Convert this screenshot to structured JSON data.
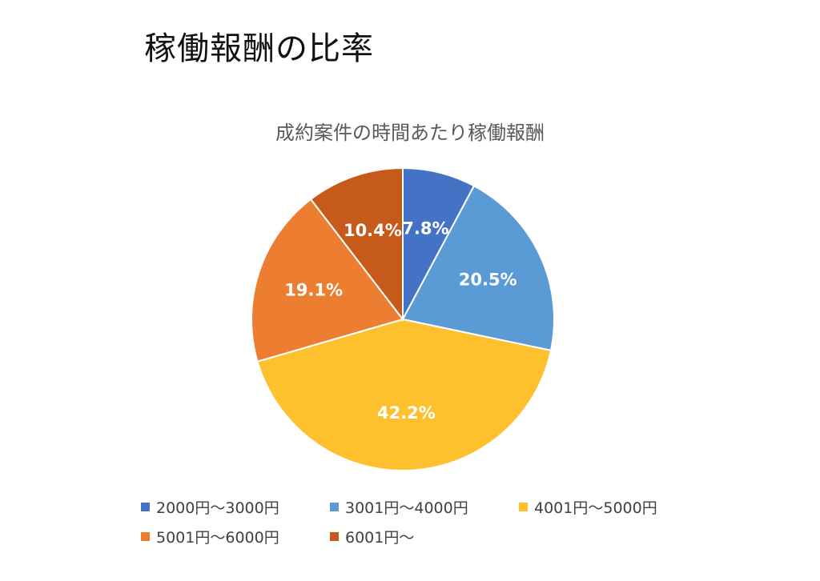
{
  "page": {
    "heading": "稼働報酬の比率"
  },
  "chart_data": {
    "type": "pie",
    "title": "成約案件の時間あたり稼働報酬",
    "categories": [
      "2000円〜3000円",
      "3001円〜4000円",
      "4001円〜5000円",
      "5001円〜6000円",
      "6001円〜"
    ],
    "values": [
      7.8,
      20.5,
      42.2,
      19.1,
      10.4
    ],
    "labels": [
      "7.8%",
      "20.5%",
      "42.2%",
      "19.1%",
      "10.4%"
    ],
    "colors": [
      "#4472C4",
      "#5B9BD5",
      "#FFC02E",
      "#ED7D31",
      "#C55A1B"
    ],
    "legend_position": "bottom",
    "start_angle": "12 o'clock, clockwise"
  }
}
